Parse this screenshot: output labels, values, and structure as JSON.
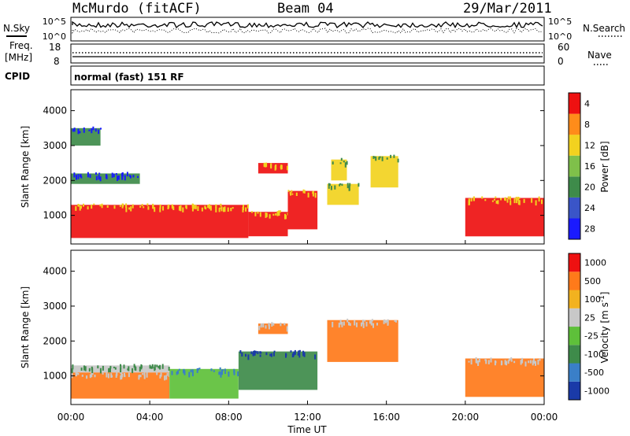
{
  "header": {
    "radar": "McMurdo (fitACF)",
    "beam": "Beam 04",
    "date": "29/Mar/2011"
  },
  "top_panels": {
    "nsky_label": "N.Sky",
    "nsearch_label": "N.Search",
    "noise_ticks_left": [
      "10^5",
      "10^0"
    ],
    "noise_ticks_right": [
      "10^5",
      "10^0"
    ],
    "freq_label_line1": "Freq.",
    "freq_label_line2": "[MHz]",
    "freq_ticks": [
      "18",
      "8"
    ],
    "nave_label": "Nave",
    "nave_ticks": [
      "60",
      "0"
    ],
    "cpid_label": "CPID",
    "cpid_value": "normal (fast) 151 RF"
  },
  "chart_data": [
    {
      "type": "heatmap",
      "name": "power",
      "ylabel": "Slant Range [km]",
      "yticks": [
        1000,
        2000,
        3000,
        4000
      ],
      "ylim": [
        180,
        4600
      ],
      "xlim_hours": [
        0,
        24
      ],
      "colorbar_label": "Power [dB]",
      "colorbar_ticks": [
        "4",
        "8",
        "12",
        "16",
        "20",
        "24",
        "28"
      ],
      "colorbar_colors": [
        "#1a1aff",
        "#3a55c8",
        "#3e8b4a",
        "#7fc04a",
        "#f2d21f",
        "#ff8c1a",
        "#ee1111"
      ],
      "regions": [
        {
          "t0": 0.0,
          "t1": 9.0,
          "r0": 350,
          "r1": 1300,
          "level": 6
        },
        {
          "t0": 9.0,
          "t1": 11.0,
          "r0": 400,
          "r1": 1100,
          "level": 6
        },
        {
          "t0": 11.0,
          "t1": 12.5,
          "r0": 600,
          "r1": 1700,
          "level": 6
        },
        {
          "t0": 9.5,
          "t1": 11.0,
          "r0": 2200,
          "r1": 2500,
          "level": 6
        },
        {
          "t0": 13.2,
          "t1": 14.0,
          "r0": 2000,
          "r1": 2600,
          "level": 4
        },
        {
          "t0": 15.2,
          "t1": 16.6,
          "r0": 1800,
          "r1": 2700,
          "level": 4
        },
        {
          "t0": 13.0,
          "t1": 14.6,
          "r0": 1300,
          "r1": 1900,
          "level": 4
        },
        {
          "t0": 20.0,
          "t1": 24.0,
          "r0": 400,
          "r1": 1500,
          "level": 6
        },
        {
          "t0": 0.0,
          "t1": 3.5,
          "r0": 1900,
          "r1": 2200,
          "level": 2
        },
        {
          "t0": 0.0,
          "t1": 1.5,
          "r0": 3000,
          "r1": 3500,
          "level": 2
        }
      ]
    },
    {
      "type": "heatmap",
      "name": "velocity",
      "ylabel": "Slant Range [km]",
      "yticks": [
        1000,
        2000,
        3000,
        4000
      ],
      "ylim": [
        180,
        4600
      ],
      "xlim_hours": [
        0,
        24
      ],
      "xticks": [
        "00:00",
        "04:00",
        "08:00",
        "12:00",
        "16:00",
        "20:00",
        "00:00"
      ],
      "xlabel": "Time UT",
      "colorbar_label": "Velocity [m s^-1]",
      "colorbar_ticks": [
        "1000",
        "500",
        "100",
        "25",
        "-25",
        "-100",
        "-500",
        "-1000"
      ],
      "colorbar_colors": [
        "#1a3aa8",
        "#3a7fc8",
        "#3e8b4a",
        "#5ec03a",
        "#c8c8c8",
        "#f2b21f",
        "#ff7a1a",
        "#ee1111"
      ],
      "regions": [
        {
          "t0": 0.0,
          "t1": 5.0,
          "r0": 350,
          "r1": 1100,
          "level": 6
        },
        {
          "t0": 0.0,
          "t1": 5.0,
          "r0": 1100,
          "r1": 1300,
          "level": 4
        },
        {
          "t0": 5.0,
          "t1": 8.5,
          "r0": 350,
          "r1": 1200,
          "level": 3
        },
        {
          "t0": 8.5,
          "t1": 12.5,
          "r0": 600,
          "r1": 1700,
          "level": 2
        },
        {
          "t0": 9.5,
          "t1": 11.0,
          "r0": 2200,
          "r1": 2500,
          "level": 6
        },
        {
          "t0": 13.0,
          "t1": 16.6,
          "r0": 1400,
          "r1": 2600,
          "level": 6
        },
        {
          "t0": 20.0,
          "t1": 24.0,
          "r0": 400,
          "r1": 1500,
          "level": 6
        }
      ]
    }
  ]
}
